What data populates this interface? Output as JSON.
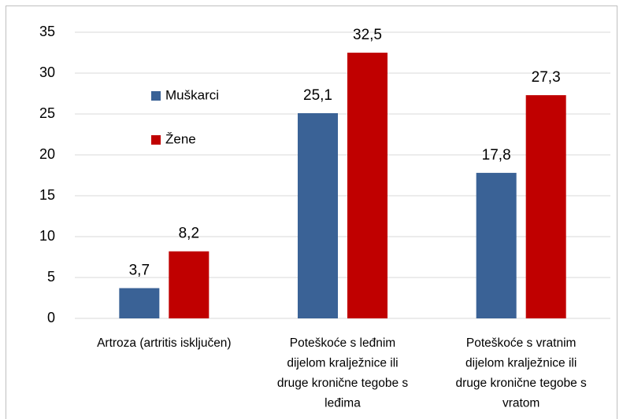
{
  "chart_data": {
    "type": "bar",
    "categories": [
      [
        "Artroza (artritis isključen)"
      ],
      [
        "Poteškoće s leđnim",
        "dijelom kralježnice ili",
        "druge kronične tegobe s",
        "leđima"
      ],
      [
        "Poteškoće s vratnim",
        "dijelom kralježnice ili",
        "druge kronične tegobe s",
        "vratom"
      ]
    ],
    "series": [
      {
        "name": "Muškarci",
        "color": "#3a6296",
        "values": [
          3.7,
          25.1,
          17.8
        ],
        "value_labels": [
          "3,7",
          "25,1",
          "17,8"
        ]
      },
      {
        "name": "Žene",
        "color": "#c00000",
        "values": [
          8.2,
          32.5,
          27.3
        ],
        "value_labels": [
          "8,2",
          "32,5",
          "27,3"
        ]
      }
    ],
    "ylim": [
      0,
      35
    ],
    "yticks": [
      0,
      5,
      10,
      15,
      20,
      25,
      30,
      35
    ],
    "grid": true
  }
}
